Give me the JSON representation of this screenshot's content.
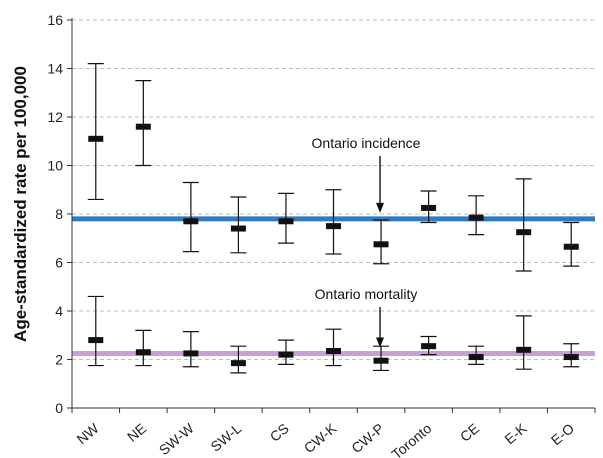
{
  "chart_data": {
    "type": "scatter",
    "title": "",
    "xlabel": "",
    "ylabel": "Age-standardized rate per 100,000",
    "ylim": [
      0,
      16
    ],
    "yticks": [
      "0",
      "2",
      "4",
      "6",
      "8",
      "10",
      "12",
      "14",
      "16"
    ],
    "grid": "horizontal dashed",
    "categories": [
      "NW",
      "NE",
      "SW-W",
      "SW-L",
      "CS",
      "CW-K",
      "CW-P",
      "Toronto",
      "CE",
      "E-K",
      "E-O"
    ],
    "series": [
      {
        "name": "",
        "values": [
          11.1,
          11.6,
          7.7,
          7.4,
          7.7,
          7.5,
          6.75,
          8.25,
          7.85,
          7.25,
          6.65
        ],
        "lower": [
          8.6,
          10.0,
          6.45,
          6.4,
          6.8,
          6.35,
          5.95,
          7.65,
          7.15,
          5.65,
          5.85
        ],
        "upper": [
          14.2,
          13.5,
          9.3,
          8.7,
          8.85,
          9.0,
          7.75,
          8.95,
          8.75,
          9.45,
          7.65
        ]
      },
      {
        "name": "",
        "values": [
          2.8,
          2.3,
          2.25,
          1.85,
          2.2,
          2.35,
          1.95,
          2.55,
          2.1,
          2.4,
          2.1
        ],
        "lower": [
          1.75,
          1.75,
          1.7,
          1.45,
          1.8,
          1.75,
          1.55,
          2.2,
          1.8,
          1.6,
          1.7
        ],
        "upper": [
          4.6,
          3.2,
          3.15,
          2.55,
          2.8,
          3.25,
          2.55,
          2.95,
          2.55,
          3.8,
          2.65
        ]
      }
    ],
    "reference_lines": [
      {
        "label": "Ontario incidence",
        "value": 7.8,
        "color": "#2e7bbf"
      },
      {
        "label": "Ontario mortality",
        "value": 2.25,
        "color": "#c9a0d6"
      }
    ]
  }
}
